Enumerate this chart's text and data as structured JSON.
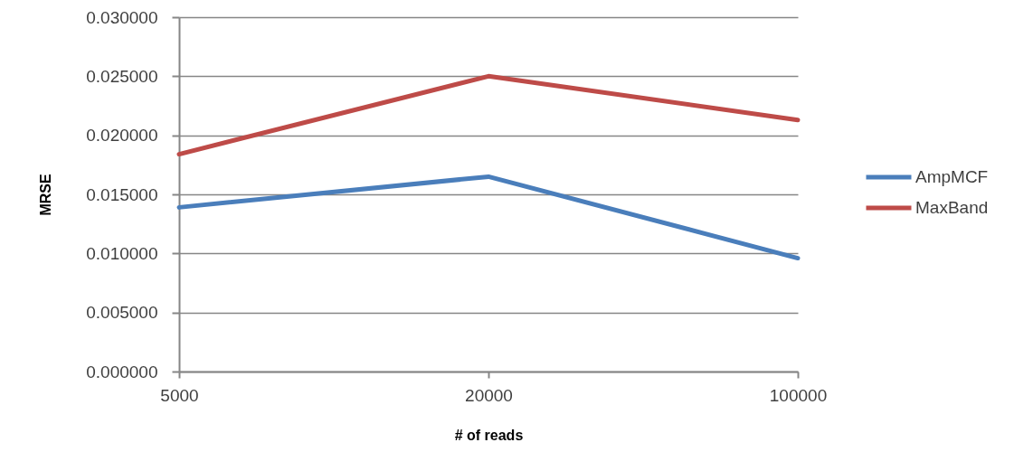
{
  "chart_data": {
    "type": "line",
    "xlabel": "# of reads",
    "ylabel": "MRSE",
    "categories": [
      "5000",
      "20000",
      "100000"
    ],
    "series": [
      {
        "name": "AmpMCF",
        "color": "#4a7ebb",
        "values": [
          0.0139,
          0.0165,
          0.0096
        ]
      },
      {
        "name": "MaxBand",
        "color": "#be4b48",
        "values": [
          0.0184,
          0.025,
          0.0213
        ]
      }
    ],
    "ylim": [
      0,
      0.03
    ],
    "yticks": [
      {
        "value": 0,
        "label": "0.000000"
      },
      {
        "value": 0.005,
        "label": "0.005000"
      },
      {
        "value": 0.01,
        "label": "0.010000"
      },
      {
        "value": 0.015,
        "label": "0.015000"
      },
      {
        "value": 0.02,
        "label": "0.020000"
      },
      {
        "value": 0.025,
        "label": "0.025000"
      },
      {
        "value": 0.03,
        "label": "0.030000"
      }
    ],
    "grid": "y",
    "legend": "right",
    "marker": "none",
    "line_style": "solid"
  }
}
